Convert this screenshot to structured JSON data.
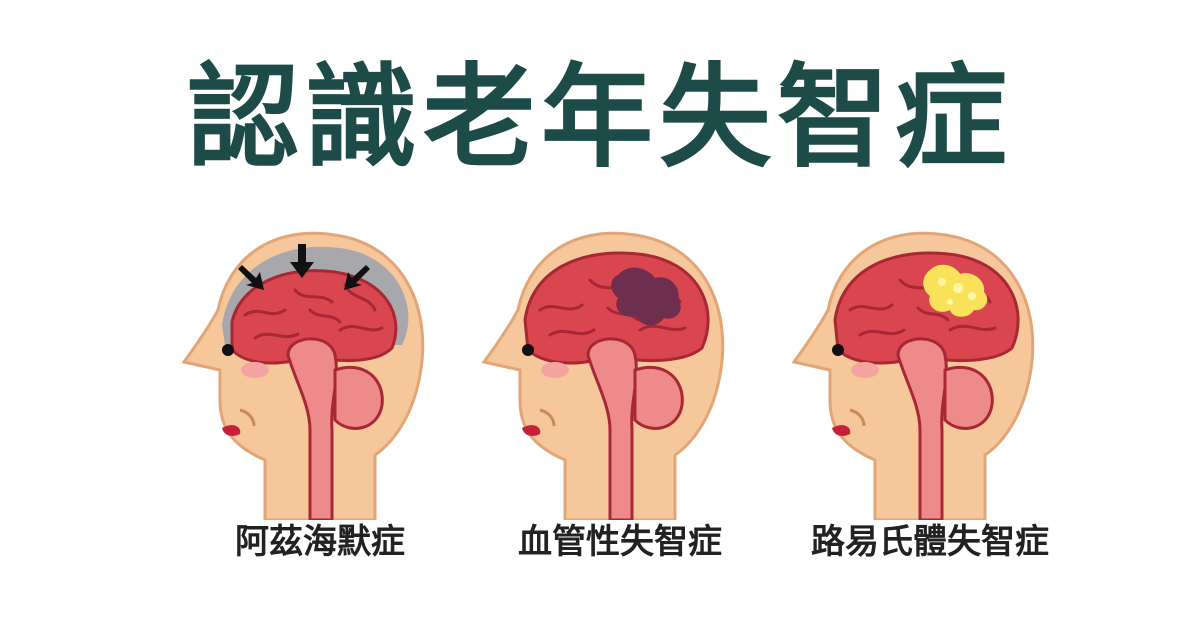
{
  "title": "認識老年失智症",
  "captions": {
    "alzheimer": "阿茲海默症",
    "vascular": "血管性失智症",
    "lewy": "路易氏體失智症"
  },
  "colors": {
    "title": "#1d4b48",
    "caption": "#222222",
    "skin": "#f5c79b",
    "skin_outline": "#e2a676",
    "cerebrum": "#d94650",
    "cerebrum_lines": "#a72834",
    "brainstem": "#ee8b8a",
    "atrophy_gray": "#a8a8ac",
    "infarct": "#6e2f4e",
    "lewy_bodies": "#f7e25a",
    "cheek": "#f3a3a0",
    "mouth": "#c8203a"
  },
  "icons": {
    "atrophy": "arrow-down-icon",
    "head": "head-profile-icon"
  }
}
